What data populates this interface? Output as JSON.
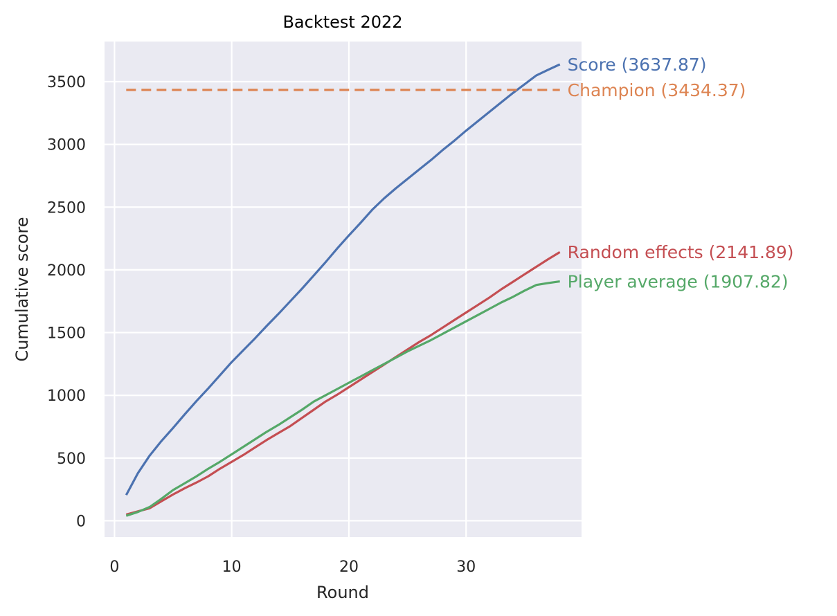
{
  "chart_data": {
    "type": "line",
    "title": "Backtest 2022",
    "xlabel": "Round",
    "ylabel": "Cumulative score",
    "xlim": [
      -0.85,
      39.85
    ],
    "ylim": [
      -130,
      3820
    ],
    "xticks": [
      0,
      10,
      20,
      30
    ],
    "yticks": [
      0,
      500,
      1000,
      1500,
      2000,
      2500,
      3000,
      3500
    ],
    "grid": true,
    "background_color": "#eaeaf2",
    "legend": "end-of-line labels",
    "series": [
      {
        "name": "Score",
        "end_label": "Score (3637.87)",
        "color": "#4c72b0",
        "dash": "solid",
        "x": [
          1,
          2,
          3,
          4,
          5,
          6,
          7,
          8,
          9,
          10,
          11,
          12,
          13,
          14,
          15,
          16,
          17,
          18,
          19,
          20,
          21,
          22,
          23,
          24,
          25,
          26,
          27,
          28,
          29,
          30,
          31,
          32,
          33,
          34,
          35,
          36,
          37,
          38
        ],
        "y": [
          205,
          380,
          520,
          635,
          740,
          850,
          955,
          1055,
          1160,
          1265,
          1360,
          1455,
          1555,
          1650,
          1750,
          1850,
          1955,
          2060,
          2170,
          2275,
          2375,
          2480,
          2570,
          2650,
          2725,
          2800,
          2875,
          2955,
          3030,
          3110,
          3185,
          3260,
          3335,
          3410,
          3480,
          3550,
          3595,
          3637.87
        ]
      },
      {
        "name": "Champion",
        "end_label": "Champion (3434.37)",
        "color": "#dd8452",
        "dash": "dashed",
        "x": [
          1,
          38
        ],
        "y": [
          3434.37,
          3434.37
        ]
      },
      {
        "name": "Random effects",
        "end_label": "Random effects (2141.89)",
        "color": "#c44e52",
        "dash": "solid",
        "x": [
          1,
          2,
          3,
          4,
          5,
          6,
          7,
          8,
          9,
          10,
          11,
          12,
          13,
          14,
          15,
          16,
          17,
          18,
          19,
          20,
          21,
          22,
          23,
          24,
          25,
          26,
          27,
          28,
          29,
          30,
          31,
          32,
          33,
          34,
          35,
          36,
          37,
          38
        ],
        "y": [
          50,
          75,
          100,
          155,
          210,
          260,
          305,
          355,
          415,
          470,
          525,
          585,
          645,
          700,
          755,
          820,
          885,
          950,
          1005,
          1065,
          1125,
          1185,
          1245,
          1305,
          1365,
          1425,
          1480,
          1540,
          1600,
          1660,
          1720,
          1780,
          1845,
          1905,
          1965,
          2025,
          2085,
          2141.89
        ]
      },
      {
        "name": "Player average",
        "end_label": "Player average (1907.82)",
        "color": "#55a868",
        "dash": "solid",
        "x": [
          1,
          2,
          3,
          4,
          5,
          6,
          7,
          8,
          9,
          10,
          11,
          12,
          13,
          14,
          15,
          16,
          17,
          18,
          19,
          20,
          21,
          22,
          23,
          24,
          25,
          26,
          27,
          28,
          29,
          30,
          31,
          32,
          33,
          34,
          35,
          36,
          37,
          38
        ],
        "y": [
          40,
          70,
          110,
          175,
          245,
          300,
          355,
          415,
          470,
          530,
          590,
          650,
          710,
          765,
          825,
          885,
          950,
          1000,
          1050,
          1100,
          1150,
          1200,
          1250,
          1300,
          1350,
          1395,
          1440,
          1490,
          1540,
          1590,
          1640,
          1690,
          1740,
          1785,
          1835,
          1880,
          1895,
          1907.82
        ]
      }
    ]
  }
}
